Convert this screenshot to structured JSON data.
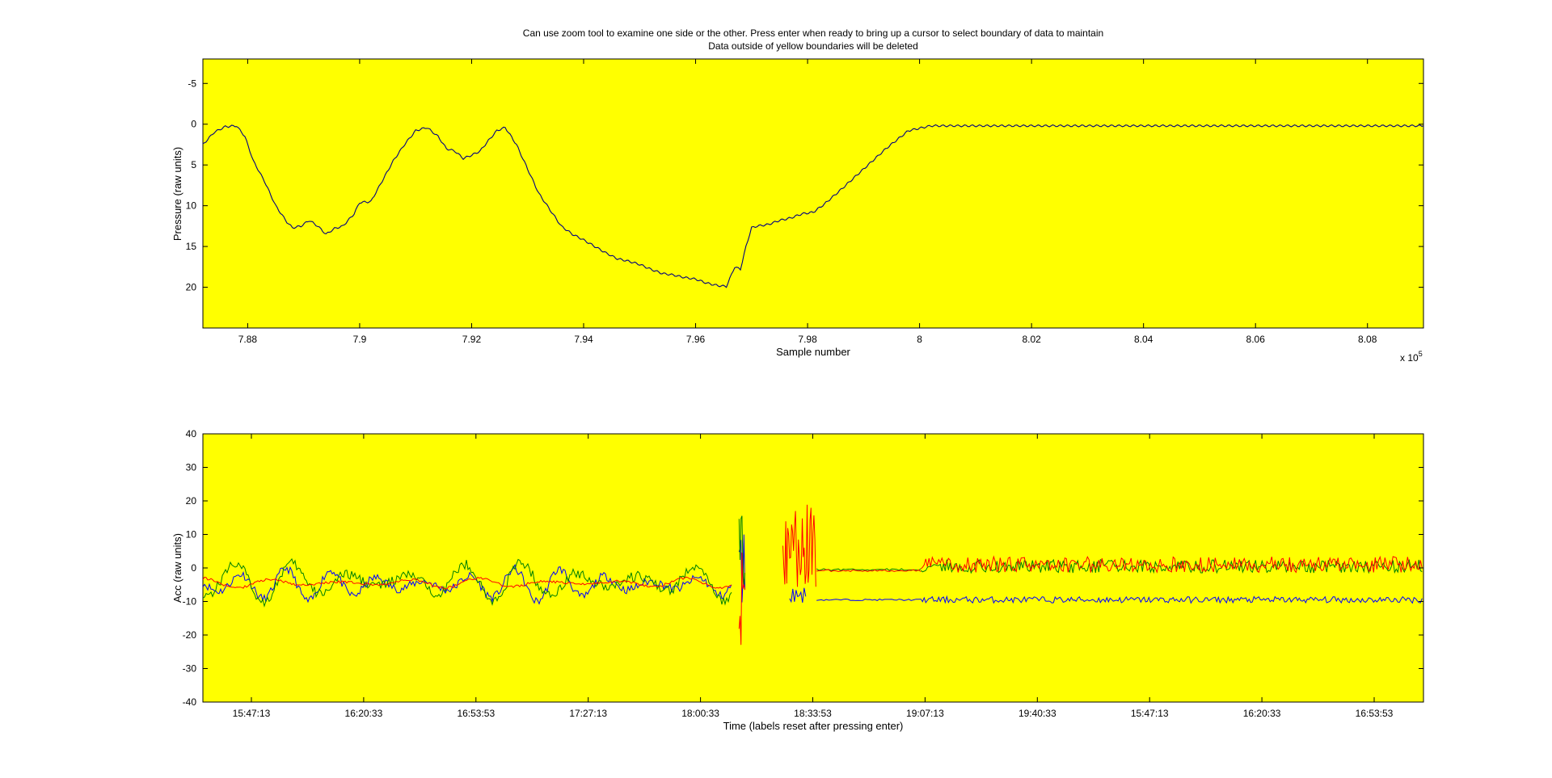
{
  "figure": {
    "title_line1": "Can use zoom tool to examine one side or the other. Press enter when ready to bring up a cursor to select boundary of data to maintain",
    "title_line2": "Data outside of yellow boundaries will be deleted",
    "background": "#ffffff",
    "axes_background": "#ffff00"
  },
  "chart_data": [
    {
      "type": "line",
      "xlabel": "Sample number",
      "ylabel": "Pressure (raw units)",
      "x_multiplier_label": "x 10",
      "x_multiplier_exponent": "5",
      "xlim": [
        7.872,
        8.09
      ],
      "ylim": [
        25,
        -8
      ],
      "y_reversed": true,
      "xticks": [
        7.88,
        7.9,
        7.92,
        7.94,
        7.96,
        7.98,
        8.0,
        8.02,
        8.04,
        8.06,
        8.08
      ],
      "xtick_labels": [
        "7.88",
        "7.9",
        "7.92",
        "7.94",
        "7.96",
        "7.98",
        "8",
        "8.02",
        "8.04",
        "8.06",
        "8.08"
      ],
      "yticks": [
        -5,
        0,
        5,
        10,
        15,
        20
      ],
      "ytick_labels": [
        "-5",
        "0",
        "5",
        "10",
        "15",
        "20"
      ],
      "grid": false,
      "series": [
        {
          "color": "#000080",
          "x": [
            7.872,
            7.874,
            7.876,
            7.878,
            7.8795,
            7.881,
            7.883,
            7.885,
            7.887,
            7.888,
            7.8895,
            7.891,
            7.8925,
            7.894,
            7.8955,
            7.897,
            7.899,
            7.9,
            7.902,
            7.904,
            7.906,
            7.908,
            7.91,
            7.912,
            7.914,
            7.9155,
            7.917,
            7.9185,
            7.92,
            7.9215,
            7.923,
            7.9245,
            7.926,
            7.928,
            7.93,
            7.932,
            7.934,
            7.936,
            7.938,
            7.94,
            7.942,
            7.944,
            7.946,
            7.948,
            7.95,
            7.952,
            7.954,
            7.956,
            7.958,
            7.96,
            7.962,
            7.964,
            7.9655,
            7.967,
            7.968,
            7.969,
            7.97,
            7.971,
            7.973,
            7.975,
            7.977,
            7.979,
            7.981,
            7.983,
            7.986,
            7.99,
            7.994,
            7.998,
            8.002,
            8.006,
            8.02,
            8.04,
            8.06,
            8.08,
            8.09
          ],
          "y": [
            2.5,
            1.0,
            0.3,
            0.2,
            1.5,
            4.5,
            7.0,
            10.0,
            12.0,
            12.7,
            12.5,
            11.8,
            12.5,
            13.5,
            12.8,
            12.5,
            11.0,
            9.6,
            9.5,
            7.0,
            4.5,
            2.5,
            0.8,
            0.4,
            1.5,
            3.0,
            3.3,
            4.2,
            3.8,
            3.3,
            2.0,
            0.8,
            0.4,
            2.5,
            5.5,
            8.5,
            10.5,
            12.5,
            13.5,
            14.2,
            15.0,
            15.8,
            16.5,
            16.8,
            17.2,
            17.8,
            18.3,
            18.5,
            18.8,
            19.0,
            19.5,
            19.8,
            19.9,
            17.5,
            17.8,
            15.0,
            12.7,
            12.5,
            12.3,
            11.8,
            11.5,
            11.0,
            10.8,
            9.8,
            8.0,
            5.5,
            3.0,
            0.8,
            0.2,
            0.2,
            0.2,
            0.2,
            0.2,
            0.2,
            0.2
          ]
        }
      ]
    },
    {
      "type": "line",
      "xlabel": "Time (labels reset after pressing enter)",
      "ylabel": "Acc (raw units)",
      "ylim": [
        -40,
        40
      ],
      "yticks": [
        -40,
        -30,
        -20,
        -10,
        0,
        10,
        20,
        30,
        40
      ],
      "ytick_labels": [
        "-40",
        "-30",
        "-20",
        "-10",
        "0",
        "10",
        "20",
        "30",
        "40"
      ],
      "xtick_labels": [
        "15:47:13",
        "16:20:33",
        "16:53:53",
        "17:27:13",
        "18:00:33",
        "18:33:53",
        "19:07:13",
        "19:40:33",
        "15:47:13",
        "16:20:33",
        "16:53:53"
      ],
      "grid": false,
      "series": [
        {
          "color": "#0000ff",
          "segments": [
            {
              "from": "15:47:13",
              "to": "18:10:00",
              "mean": -5,
              "swing": 5
            },
            {
              "from": "18:12:00",
              "to": "18:14:00",
              "range": [
                -12,
                12
              ]
            },
            {
              "from": "18:27:00",
              "to": "18:32:00",
              "mean": -8,
              "swing": 3
            },
            {
              "from": "18:35:00",
              "to": "19:06:00",
              "mean": -9.5,
              "swing": 0.3
            },
            {
              "from": "19:06:00",
              "to": "16:53:53",
              "mean": -9.5,
              "swing": 1.2
            }
          ]
        },
        {
          "color": "#008000",
          "segments": [
            {
              "from": "15:47:13",
              "to": "18:10:00",
              "mean": -4,
              "swing": 6
            },
            {
              "from": "18:12:00",
              "to": "18:14:00",
              "range": [
                -13,
                16
              ]
            },
            {
              "from": "18:35:00",
              "to": "19:06:00",
              "mean": -0.5,
              "swing": 0.4
            },
            {
              "from": "19:06:00",
              "to": "16:53:53",
              "mean": 0.5,
              "swing": 2.5
            }
          ]
        },
        {
          "color": "#ff0000",
          "segments": [
            {
              "from": "15:47:13",
              "to": "18:10:00",
              "mean": -4.5,
              "swing": 1.5
            },
            {
              "from": "18:12:00",
              "to": "18:14:00",
              "range": [
                -25,
                8
              ]
            },
            {
              "from": "18:25:00",
              "to": "18:35:00",
              "range": [
                -6,
                19
              ]
            },
            {
              "from": "18:35:00",
              "to": "19:06:00",
              "mean": -0.8,
              "swing": 0.4
            },
            {
              "from": "19:06:00",
              "to": "16:53:53",
              "mean": 1.0,
              "swing": 3.0
            }
          ]
        }
      ]
    }
  ]
}
